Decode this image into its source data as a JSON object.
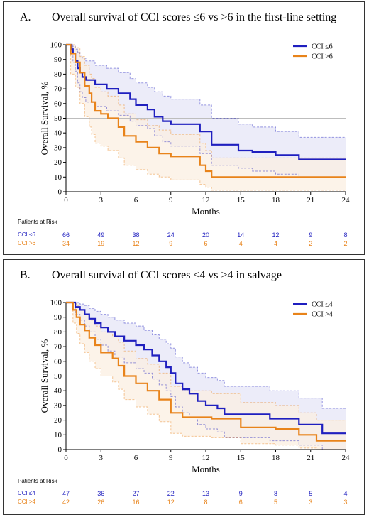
{
  "panels": [
    {
      "letter": "A.",
      "title": "Overall survival of CCI scores ≤6 vs >6 in the first-line setting",
      "ylabel": "Overall Survival, %",
      "xlabel": "Months",
      "risk_title": "Patients at Risk",
      "risk_rows": [
        {
          "name": "CCI ≤6",
          "values": [
            "66",
            "49",
            "38",
            "24",
            "20",
            "14",
            "12",
            "9",
            "8"
          ]
        },
        {
          "name": "CCI >6",
          "values": [
            "34",
            "19",
            "12",
            "9",
            "6",
            "4",
            "4",
            "2",
            "2"
          ]
        }
      ]
    },
    {
      "letter": "B.",
      "title": "Overall survival of CCI scores ≤4 vs >4 in salvage",
      "ylabel": "Overall Survival, %",
      "xlabel": "Months",
      "risk_title": "Patients at Risk",
      "risk_rows": [
        {
          "name": "CCI ≤4",
          "values": [
            "47",
            "36",
            "27",
            "22",
            "13",
            "9",
            "8",
            "5",
            "4"
          ]
        },
        {
          "name": "CCI >4",
          "values": [
            "42",
            "26",
            "16",
            "12",
            "8",
            "6",
            "5",
            "3",
            "3"
          ]
        }
      ]
    }
  ],
  "colors": {
    "series1": "#1f1fbf",
    "series2": "#e8831a",
    "band1": "#e6e6f7",
    "band2": "#fbefe2",
    "ref": "#bdbdbd"
  },
  "chart_data": [
    {
      "type": "line",
      "step": true,
      "xlim": [
        0,
        24
      ],
      "ylim": [
        0,
        100
      ],
      "xticks": [
        0,
        3,
        6,
        9,
        12,
        15,
        18,
        21,
        24
      ],
      "yticks": [
        0,
        10,
        20,
        30,
        40,
        50,
        60,
        70,
        80,
        90,
        100
      ],
      "reference_line_y": 50,
      "legend": "top-right",
      "series": [
        {
          "name": "CCI ≤6",
          "x": [
            0,
            0.5,
            0.6,
            0.8,
            1.0,
            1.2,
            1.4,
            1.7,
            2.5,
            3.5,
            4.5,
            5.5,
            6.0,
            7.0,
            7.6,
            8.3,
            9.0,
            11.5,
            12.5,
            14.8,
            16.0,
            18.0,
            20.0,
            24.0
          ],
          "y": [
            100,
            97,
            94,
            89,
            84,
            81,
            78,
            76,
            73,
            70,
            67,
            63,
            59,
            56,
            51,
            48,
            46,
            41,
            32,
            28,
            27,
            25,
            22,
            22
          ],
          "upper": [
            100,
            99,
            99,
            97,
            95,
            93,
            91,
            89,
            86,
            84,
            81,
            77,
            74,
            71,
            68,
            65,
            63,
            59,
            50,
            46,
            44,
            41,
            37,
            37
          ],
          "lower": [
            100,
            93,
            88,
            82,
            74,
            68,
            64,
            61,
            58,
            55,
            52,
            48,
            45,
            43,
            38,
            34,
            31,
            26,
            18,
            16,
            14,
            12,
            10,
            10
          ]
        },
        {
          "name": "CCI >6",
          "x": [
            0,
            0.4,
            0.8,
            1.2,
            1.6,
            2.0,
            2.2,
            2.5,
            3.0,
            3.6,
            4.5,
            5.0,
            6.0,
            7.0,
            8.0,
            9.0,
            11.5,
            12.0,
            12.5,
            24.0
          ],
          "y": [
            100,
            94,
            88,
            81,
            72,
            67,
            61,
            55,
            53,
            50,
            44,
            38,
            34,
            30,
            26,
            24,
            18,
            14,
            10,
            10
          ],
          "upper": [
            100,
            100,
            98,
            92,
            86,
            80,
            77,
            71,
            68,
            65,
            59,
            53,
            49,
            45,
            42,
            39,
            33,
            28,
            23,
            23
          ],
          "lower": [
            100,
            80,
            71,
            60,
            51,
            44,
            39,
            33,
            31,
            28,
            23,
            18,
            15,
            12,
            10,
            8,
            5,
            3,
            1,
            1
          ]
        }
      ]
    },
    {
      "type": "line",
      "step": true,
      "xlim": [
        0,
        24
      ],
      "ylim": [
        0,
        100
      ],
      "xticks": [
        0,
        3,
        6,
        9,
        12,
        15,
        18,
        21,
        24
      ],
      "yticks": [
        0,
        10,
        20,
        30,
        40,
        50,
        60,
        70,
        80,
        90,
        100
      ],
      "reference_line_y": 50,
      "legend": "top-right",
      "series": [
        {
          "name": "CCI ≤4",
          "x": [
            0,
            0.8,
            1.2,
            1.6,
            2.0,
            2.5,
            3.0,
            3.6,
            4.2,
            5.0,
            6.0,
            6.7,
            7.4,
            8.0,
            8.6,
            9.0,
            9.4,
            10.0,
            10.6,
            11.3,
            12.0,
            13.0,
            13.6,
            15.0,
            17.5,
            20.0,
            22.0,
            24.0
          ],
          "y": [
            100,
            97,
            95,
            92,
            89,
            86,
            83,
            80,
            77,
            74,
            71,
            68,
            64,
            60,
            56,
            52,
            45,
            41,
            38,
            33,
            30,
            28,
            24,
            24,
            21,
            17,
            11,
            11
          ],
          "upper": [
            100,
            100,
            99,
            98,
            96,
            94,
            92,
            90,
            88,
            86,
            84,
            81,
            78,
            75,
            72,
            69,
            63,
            59,
            56,
            52,
            49,
            47,
            43,
            43,
            40,
            35,
            28,
            28
          ],
          "lower": [
            100,
            92,
            88,
            84,
            80,
            75,
            71,
            67,
            63,
            59,
            55,
            52,
            48,
            44,
            40,
            36,
            29,
            25,
            22,
            17,
            14,
            12,
            8,
            8,
            6,
            3,
            0,
            0
          ]
        },
        {
          "name": "CCI >4",
          "x": [
            0,
            0.6,
            0.9,
            1.2,
            1.6,
            2.0,
            2.5,
            3.0,
            4.0,
            4.5,
            5.0,
            6.0,
            7.0,
            8.0,
            9.0,
            10.0,
            12.5,
            15.0,
            18.0,
            20.0,
            21.5,
            24.0
          ],
          "y": [
            100,
            95,
            90,
            85,
            81,
            76,
            71,
            66,
            62,
            57,
            50,
            45,
            40,
            34,
            25,
            22,
            21,
            15,
            14,
            10,
            6,
            6
          ],
          "upper": [
            100,
            100,
            98,
            95,
            92,
            88,
            84,
            80,
            77,
            73,
            67,
            62,
            58,
            52,
            43,
            40,
            38,
            32,
            30,
            25,
            20,
            20
          ],
          "lower": [
            100,
            86,
            79,
            72,
            66,
            60,
            55,
            50,
            46,
            41,
            34,
            29,
            24,
            19,
            11,
            9,
            8,
            4,
            3,
            1,
            0,
            0
          ]
        }
      ]
    }
  ]
}
